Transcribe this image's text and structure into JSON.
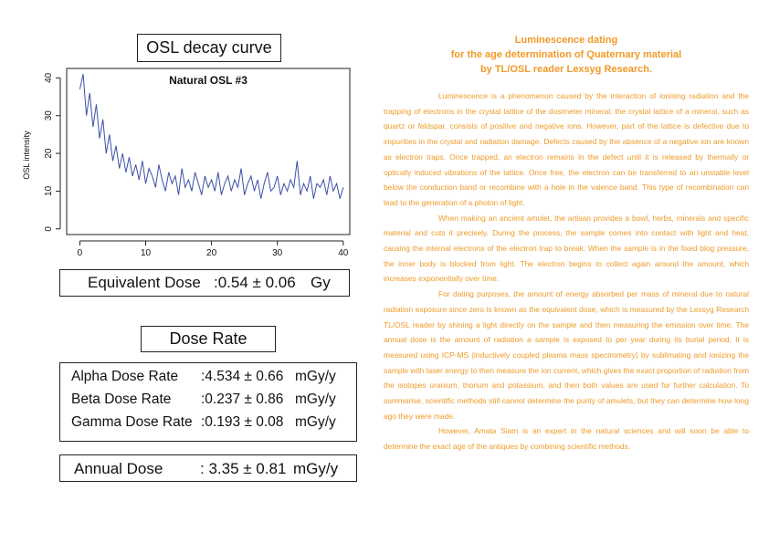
{
  "chart_data": {
    "type": "line",
    "title": "Natural OSL #3",
    "ylabel": "OSL intensity",
    "x": [
      0,
      0.5,
      1,
      1.5,
      2,
      2.5,
      3,
      3.5,
      4,
      4.5,
      5,
      5.5,
      6,
      6.5,
      7,
      7.5,
      8,
      8.5,
      9,
      9.5,
      10,
      10.5,
      11,
      11.5,
      12,
      12.5,
      13,
      13.5,
      14,
      14.5,
      15,
      15.5,
      16,
      16.5,
      17,
      17.5,
      18,
      18.5,
      19,
      19.5,
      20,
      20.5,
      21,
      21.5,
      22,
      22.5,
      23,
      23.5,
      24,
      24.5,
      25,
      25.5,
      26,
      26.5,
      27,
      27.5,
      28,
      28.5,
      29,
      29.5,
      30,
      30.5,
      31,
      31.5,
      32,
      32.5,
      33,
      33.5,
      34,
      34.5,
      35,
      35.5,
      36,
      36.5,
      37,
      37.5,
      38,
      38.5,
      39,
      39.5,
      40
    ],
    "series": [
      {
        "name": "Natural OSL #3",
        "color": "#3a4fa8",
        "values": [
          37,
          41,
          30,
          36,
          27,
          33,
          24,
          29,
          20,
          25,
          18,
          22,
          16,
          20,
          15,
          19,
          14,
          17,
          13,
          18,
          12,
          16,
          14,
          11,
          17,
          13,
          10,
          15,
          12,
          14,
          9,
          16,
          11,
          13,
          10,
          15,
          12,
          9,
          14,
          11,
          13,
          10,
          15,
          9,
          12,
          14,
          10,
          13,
          11,
          16,
          9,
          12,
          14,
          10,
          13,
          8,
          12,
          15,
          10,
          11,
          14,
          9,
          12,
          10,
          13,
          11,
          18,
          9,
          12,
          10,
          14,
          8,
          12,
          11,
          13,
          9,
          14,
          10,
          12,
          8,
          11
        ]
      }
    ],
    "xlim": [
      -2,
      41
    ],
    "ylim": [
      -1.5,
      42.5
    ],
    "xticks": [
      0,
      10,
      20,
      30,
      40
    ],
    "yticks": [
      0,
      10,
      20,
      30,
      40
    ]
  },
  "document": {
    "curve_heading": "OSL decay curve",
    "equivalent_dose": {
      "label": "Equivalent Dose",
      "value": ":0.54 ± 0.06",
      "unit": "Gy"
    },
    "dose_rate_heading": "Dose Rate",
    "dose_rates": [
      [
        "Alpha Dose Rate",
        ":4.534 ± 0.66",
        "mGy/y"
      ],
      [
        "Beta Dose Rate",
        ":0.237 ± 0.86",
        "mGy/y"
      ],
      [
        "Gamma Dose Rate",
        ":0.193 ± 0.08",
        "mGy/y"
      ]
    ],
    "annual_dose": {
      "label": "Annual Dose",
      "value": ": 3.35 ± 0.81",
      "unit": "mGy/y"
    },
    "title_lines": [
      "Luminescence dating",
      "for the age determination of Quaternary material",
      "by TL/OSL reader Lexsyg Research."
    ],
    "paragraphs": [
      "Luminescence is a phenomenon caused by the interaction of ionising radiation and the trapping of electrons in the crystal lattice of the dosimeter mineral. the crystal lattice of a mineral, such as quartz or feldspar, consists of positive and negative ions. However, part of the lattice is defective due to impurities in the crystal and radiation damage. Defects caused by the absence of a negative ion are known as electron traps. Once trapped, an electron remains in the defect until it is released by thermally or optically induced vibrations of the lattice. Once free, the electron can be transferred to an unstable level below the conduction band or recombine with a hole in the valence band. This type of recombination can lead to the generation of a photon of light.",
      "When making an ancient amulet, the artisan provides a bowl, herbs, minerals and specific material and cuts it precisely. During the process, the sample comes into contact with light and heat, causing the internal electrons of the electron trap to break. When the sample is in the fixed blog pressure, the inner body is blocked from light. The electron begins to collect again around the amount, which increases exponentially over time.",
      "For dating purposes, the amount of energy absorbed per mass of mineral due to natural radiation exposure since zero is known as the equivalent dose, which is measured by the Lexsyg Research TL/OSL reader by shining a light directly on the sample and then measuring the emission over time. The annual dose is the amount of radiation a sample is exposed to per year during its burial period. It is measured using ICP-MS (inductively coupled plasma mass spectrometry) by sublimating and ionizing the sample with laser energy to then measure the ion current, which gives the exact proportion of radiation from the isotopes uranium, thorium and potassium, and then both values are used for further calculation. To summarise, scientific methods still cannot determine the purity of amulets, but they can determine how long ago they were made.",
      "However, Amata Siam is an expert in the natural sciences and will soon be able to determine the exact age of the antiques by combining scientific methods."
    ]
  }
}
